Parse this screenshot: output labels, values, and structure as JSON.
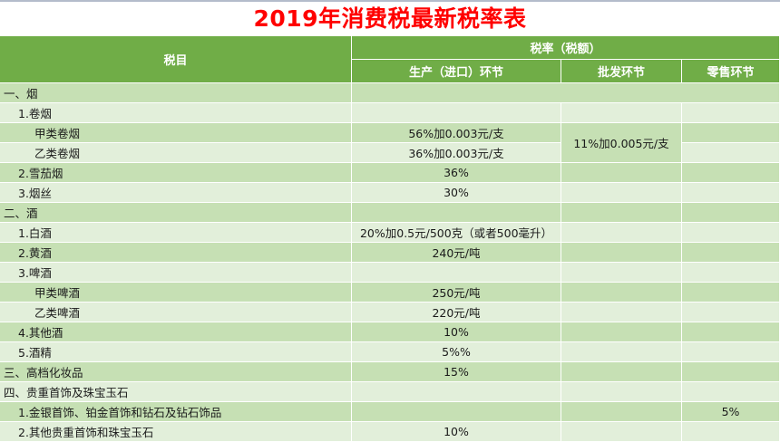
{
  "title": "2019年消费税最新税率表",
  "header": {
    "col_item": "税目",
    "col_rate_group": "税率（税额）",
    "col_production": "生产（进口）环节",
    "col_wholesale": "批发环节",
    "col_retail": "零售环节"
  },
  "colors": {
    "title": "#ff0000",
    "header_bg": "#70ad47",
    "row_dark": "#c6e0b4",
    "row_light": "#e2efda"
  },
  "rows": [
    {
      "item": "一、烟",
      "indent": 0,
      "production": "",
      "wholesale": "",
      "retail": ""
    },
    {
      "item": "1.卷烟",
      "indent": 1,
      "production": "",
      "wholesale": "",
      "retail": ""
    },
    {
      "item": "甲类卷烟",
      "indent": 2,
      "production": "56%加0.003元/支",
      "wholesale": "",
      "retail": ""
    },
    {
      "item": "乙类卷烟",
      "indent": 2,
      "production": "36%加0.003元/支",
      "wholesale": "",
      "retail": ""
    },
    {
      "item": "2.雪茄烟",
      "indent": 1,
      "production": "36%",
      "wholesale": "",
      "retail": ""
    },
    {
      "item": "3.烟丝",
      "indent": 1,
      "production": "30%",
      "wholesale": "",
      "retail": ""
    },
    {
      "item": "二、酒",
      "indent": 0,
      "production": "",
      "wholesale": "",
      "retail": ""
    },
    {
      "item": "1.白酒",
      "indent": 1,
      "production": "20%加0.5元/500克（或者500毫升）",
      "wholesale": "",
      "retail": ""
    },
    {
      "item": "2.黄酒",
      "indent": 1,
      "production": "240元/吨",
      "wholesale": "",
      "retail": ""
    },
    {
      "item": "3.啤酒",
      "indent": 1,
      "production": "",
      "wholesale": "",
      "retail": ""
    },
    {
      "item": "甲类啤酒",
      "indent": 2,
      "production": "250元/吨",
      "wholesale": "",
      "retail": ""
    },
    {
      "item": "乙类啤酒",
      "indent": 2,
      "production": "220元/吨",
      "wholesale": "",
      "retail": ""
    },
    {
      "item": "4.其他酒",
      "indent": 1,
      "production": "10%",
      "wholesale": "",
      "retail": ""
    },
    {
      "item": "5.酒精",
      "indent": 1,
      "production": "5%%",
      "wholesale": "",
      "retail": ""
    },
    {
      "item": "三、高档化妆品",
      "indent": 0,
      "production": "15%",
      "wholesale": "",
      "retail": ""
    },
    {
      "item": "四、贵重首饰及珠宝玉石",
      "indent": 0,
      "production": "",
      "wholesale": "",
      "retail": ""
    },
    {
      "item": "1.金银首饰、铂金首饰和钻石及钻石饰品",
      "indent": 1,
      "production": "",
      "wholesale": "",
      "retail": "5%"
    },
    {
      "item": "2.其他贵重首饰和珠宝玉石",
      "indent": 1,
      "production": "10%",
      "wholesale": "",
      "retail": ""
    }
  ],
  "merged": {
    "cigarette_wholesale": "11%加0.005元/支"
  }
}
